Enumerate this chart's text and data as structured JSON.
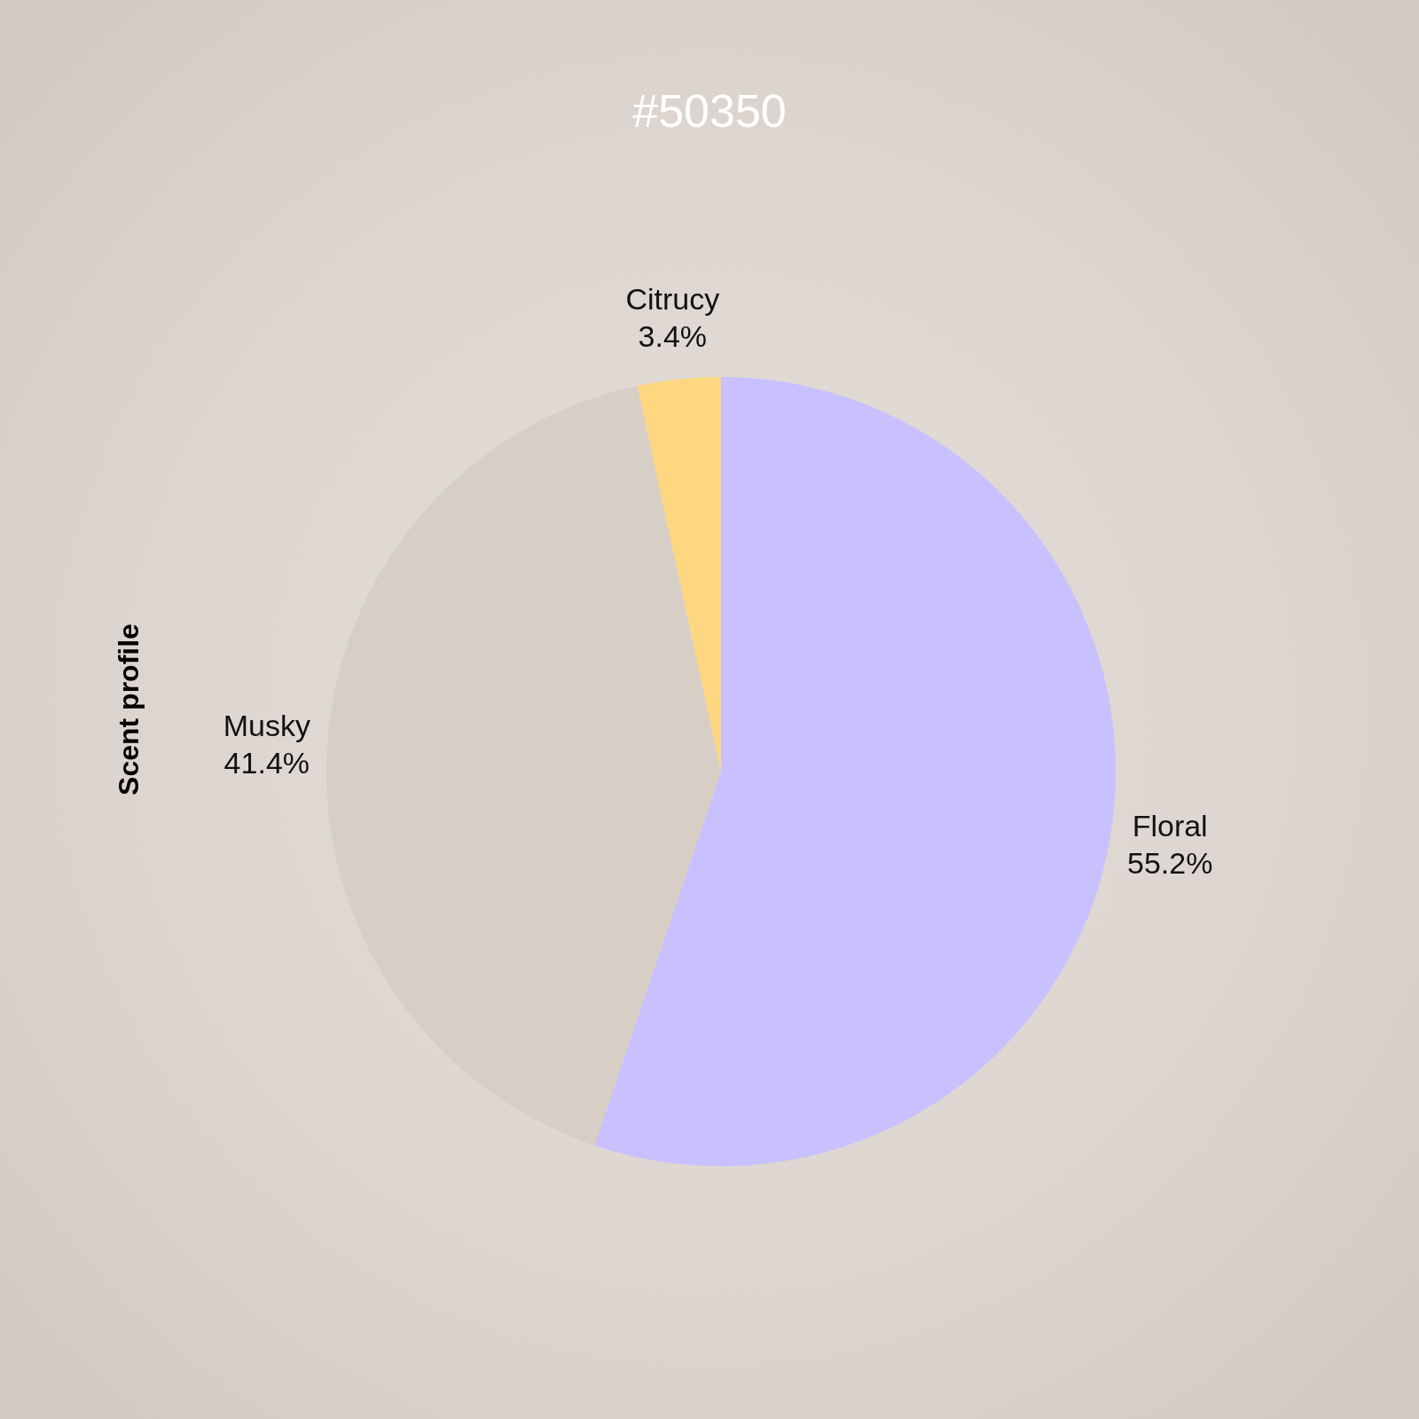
{
  "chart_data": {
    "type": "pie",
    "title": "#50350",
    "ylabel": "Scent profile",
    "categories": [
      "Floral",
      "Musky",
      "Citrucy"
    ],
    "values": [
      55.2,
      41.4,
      3.4
    ],
    "colors": [
      "#c8c0ff",
      "#d7cec5",
      "#ffd781"
    ],
    "value_labels": [
      "55.2%",
      "41.4%",
      "3.4%"
    ],
    "legend": false
  }
}
